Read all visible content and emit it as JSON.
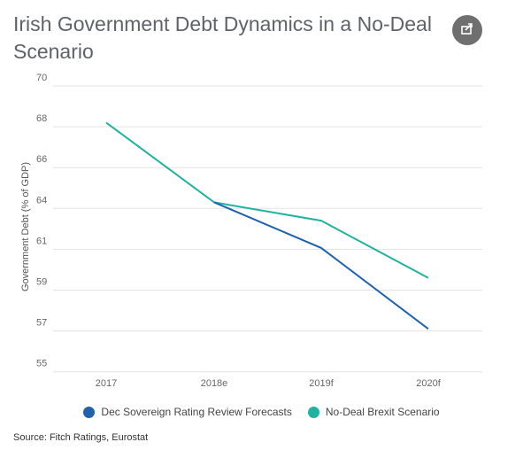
{
  "title": "Irish Government Debt Dynamics in a No-Deal Scenario",
  "share_icon": "share-icon",
  "source": "Source: Fitch Ratings, Eurostat",
  "chart_data": {
    "type": "line",
    "title": "Irish Government Debt Dynamics in a No-Deal Scenario",
    "categories": [
      "2017",
      "2018e",
      "2019f",
      "2020f"
    ],
    "ylabel": "Government Debt (% of GDP)",
    "xlabel": "",
    "yticks": [
      "70",
      "68",
      "66",
      "64",
      "61",
      "59",
      "57",
      "55"
    ],
    "ylim": [
      55,
      70
    ],
    "grid": true,
    "legend_position": "bottom",
    "series": [
      {
        "name": "Dec Sovereign Rating Review Forecasts",
        "color": "#1f63ae",
        "values": [
          null,
          64.3,
          61.1,
          57.1
        ]
      },
      {
        "name": "No-Deal Brexit Scenario",
        "color": "#20b2a0",
        "values": [
          68.2,
          64.3,
          63.1,
          59.6
        ]
      }
    ]
  }
}
